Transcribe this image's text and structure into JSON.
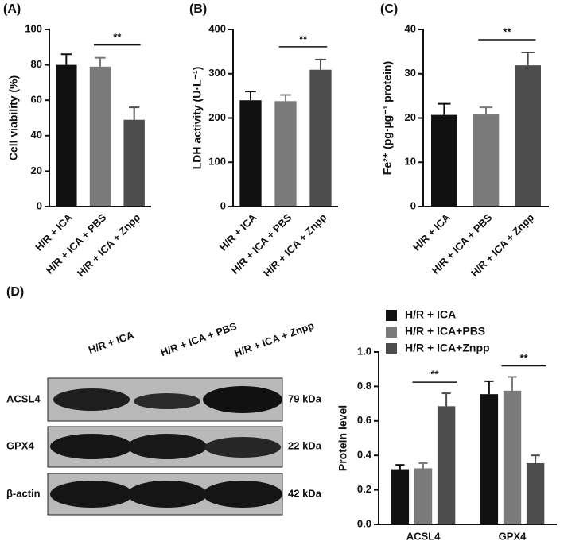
{
  "chart_data": [
    {
      "type": "bar",
      "panel": "(A)",
      "ylabel": "Cell viability (%)",
      "categories": [
        "H/R + ICA",
        "H/R + ICA + PBS",
        "H/R + ICA + Znpp"
      ],
      "values": [
        80,
        79,
        49
      ],
      "errors": [
        6,
        5,
        7
      ],
      "colors": [
        "#111111",
        "#7a7a7a",
        "#4d4d4d"
      ],
      "ylim": [
        0,
        100
      ],
      "yticks": [
        0,
        20,
        40,
        60,
        80,
        100
      ],
      "annotations": [
        {
          "text": "**",
          "between": [
            1,
            2
          ]
        }
      ]
    },
    {
      "type": "bar",
      "panel": "(B)",
      "ylabel": "LDH activity (U·L⁻¹)",
      "categories": [
        "H/R + ICA",
        "H/R + ICA + PBS",
        "H/R + ICA + Znpp"
      ],
      "values": [
        240,
        238,
        309
      ],
      "errors": [
        20,
        14,
        23
      ],
      "colors": [
        "#111111",
        "#7a7a7a",
        "#4d4d4d"
      ],
      "ylim": [
        0,
        400
      ],
      "yticks": [
        0,
        100,
        200,
        300,
        400
      ],
      "annotations": [
        {
          "text": "**",
          "between": [
            1,
            2
          ]
        }
      ]
    },
    {
      "type": "bar",
      "panel": "(C)",
      "ylabel": "Fe²⁺ (pg·µg⁻¹ protein)",
      "categories": [
        "H/R + ICA",
        "H/R + ICA + PBS",
        "H/R + ICA + Znpp"
      ],
      "values": [
        20.7,
        20.8,
        31.9
      ],
      "errors": [
        2.5,
        1.6,
        2.9
      ],
      "colors": [
        "#111111",
        "#7a7a7a",
        "#4d4d4d"
      ],
      "ylim": [
        0,
        40
      ],
      "yticks": [
        0,
        10,
        20,
        30,
        40
      ],
      "annotations": [
        {
          "text": "**",
          "between": [
            1,
            2
          ]
        }
      ]
    },
    {
      "type": "grouped-bar",
      "ylabel": "Protein level",
      "categories": [
        "ACSL4",
        "GPX4"
      ],
      "series": [
        {
          "name": "H/R + ICA",
          "color": "#111111",
          "values": [
            0.32,
            0.755
          ],
          "errors": [
            0.025,
            0.075
          ]
        },
        {
          "name": "H/R + ICA+PBS",
          "color": "#7a7a7a",
          "values": [
            0.325,
            0.775
          ],
          "errors": [
            0.03,
            0.08
          ]
        },
        {
          "name": "H/R + ICA+Znpp",
          "color": "#4d4d4d",
          "values": [
            0.685,
            0.355
          ],
          "errors": [
            0.075,
            0.045
          ]
        }
      ],
      "ylim": [
        0,
        1
      ],
      "yticks": [
        {
          "value": 0,
          "label": "0.0"
        },
        0.2,
        0.4,
        0.6,
        0.8,
        {
          "value": 1,
          "label": "1.0"
        }
      ],
      "annotations": [
        {
          "text": "**",
          "category": 0,
          "between": [
            1,
            2
          ]
        },
        {
          "text": "**",
          "category": 1,
          "between": [
            1,
            2
          ]
        }
      ]
    }
  ],
  "blot": {
    "panel": "(D)",
    "lanes": [
      "H/R + ICA",
      "H/R + ICA + PBS",
      "H/R + ICA + Znpp"
    ],
    "rows": [
      {
        "protein": "ACSL4",
        "size": "79 kDa"
      },
      {
        "protein": "GPX4",
        "size": "22 kDa"
      },
      {
        "protein": "β-actin",
        "size": "42 kDa"
      }
    ]
  }
}
